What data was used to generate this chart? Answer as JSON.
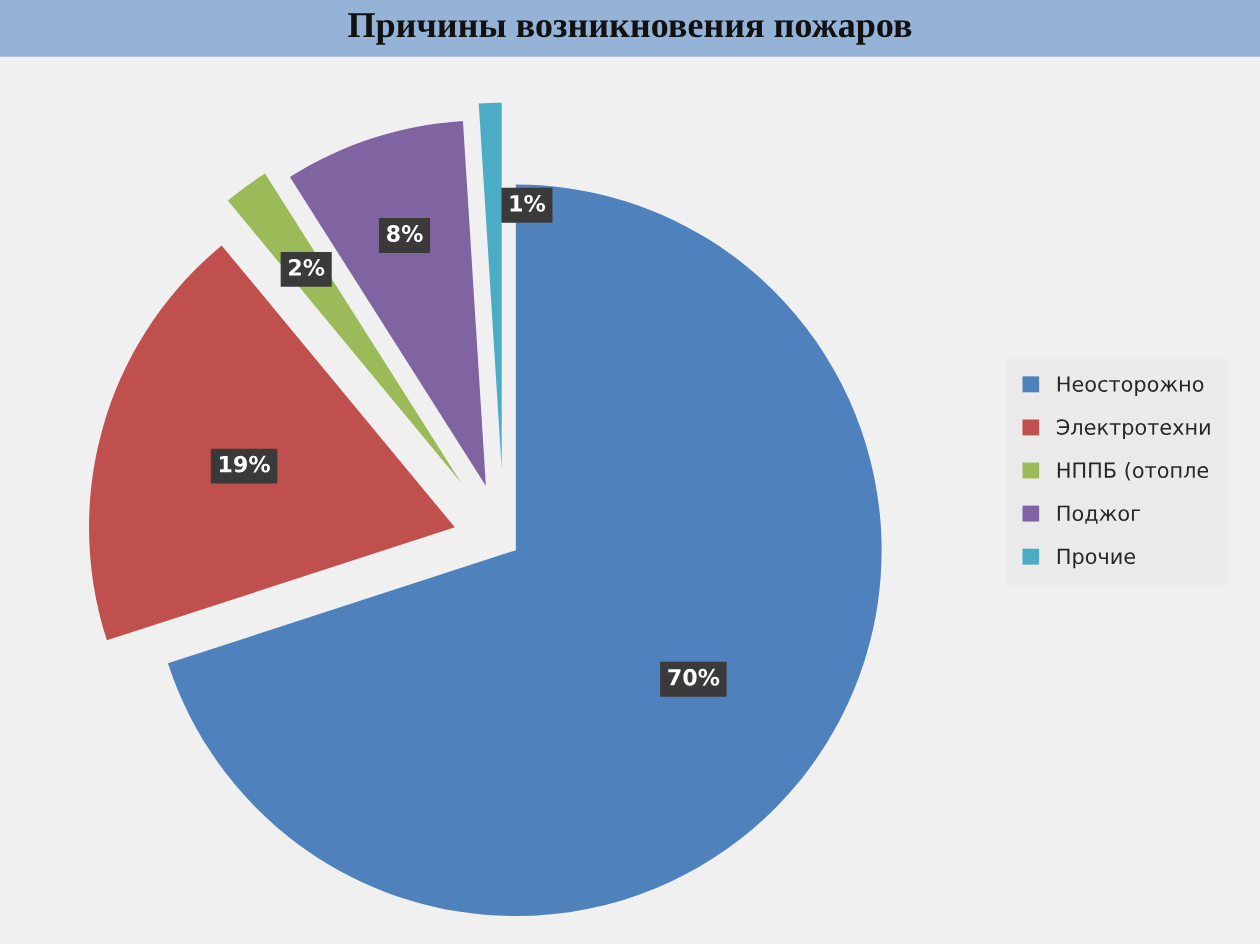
{
  "chart_data": {
    "type": "pie",
    "title": "Причины возникновения пожаров",
    "categories": [
      "Неосторожно",
      "Электротехни",
      "НППБ (отопле",
      "Поджог",
      "Прочие"
    ],
    "values": [
      70,
      19,
      2,
      8,
      1
    ],
    "colors": [
      "#4f81bd",
      "#c0504d",
      "#9bbb59",
      "#8064a2",
      "#4bacc6"
    ],
    "value_labels": [
      "70%",
      "19%",
      "2%",
      "8%",
      "1%"
    ],
    "legend": "right"
  }
}
